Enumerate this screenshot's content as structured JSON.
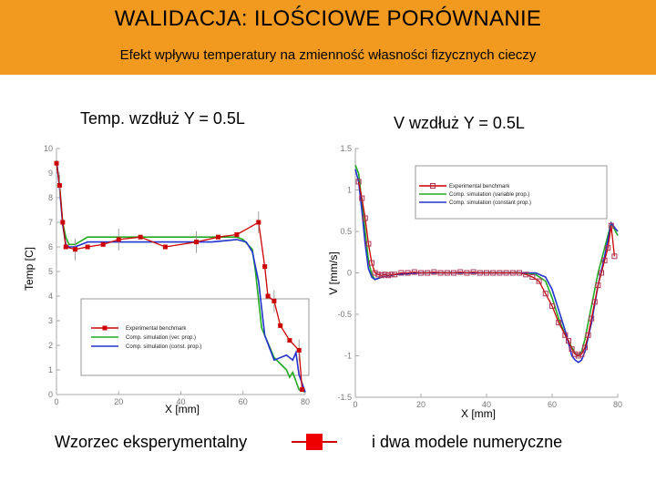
{
  "header": {
    "title": "WALIDACJA:  ILOŚCIOWE PORÓWNANIE",
    "subtitle": "Efekt wpływu temperatury na zmienność własności fizycznych cieczy"
  },
  "colors": {
    "header_bg": "#f29a1f",
    "experimental": "#cc0000",
    "variable": "#22aa22",
    "constant": "#2233cc"
  },
  "captions": {
    "left": "Wzorzec eksperymentalny",
    "right": "i dwa modele numeryczne"
  },
  "chart_data": [
    {
      "type": "line",
      "title": "Temp. wzdłuż Y = 0.5L",
      "xlabel": "X [mm]",
      "ylabel": "Temp [C]",
      "xlim": [
        0,
        80
      ],
      "ylim": [
        0,
        10
      ],
      "xticks": [
        "0",
        "20",
        "40",
        "60",
        "80"
      ],
      "yticks": [
        "0",
        "1",
        "2",
        "3",
        "4",
        "5",
        "6",
        "7",
        "8",
        "9",
        "10"
      ],
      "legend": [
        "Experimental benchmark",
        "Comp. simulation (ver. prop.)",
        "Comp. simulation (const. prop.)"
      ],
      "series": [
        {
          "name": "Experimental benchmark",
          "x": [
            0,
            1,
            2,
            3,
            6,
            10,
            15,
            20,
            27,
            35,
            45,
            52,
            58,
            65,
            67,
            68,
            70,
            72,
            75,
            78,
            79
          ],
          "y": [
            9.4,
            8.5,
            7.0,
            6.0,
            5.9,
            6.0,
            6.1,
            6.3,
            6.4,
            6.0,
            6.2,
            6.4,
            6.5,
            7.0,
            5.2,
            4.0,
            3.8,
            2.8,
            2.2,
            1.8,
            0.2
          ]
        },
        {
          "name": "Comp. simulation (ver. prop.)",
          "x": [
            0,
            1,
            2,
            3,
            4,
            6,
            10,
            15,
            20,
            30,
            40,
            50,
            58,
            60,
            63,
            64,
            66,
            70,
            74,
            75,
            76,
            78,
            80
          ],
          "y": [
            9.5,
            8.5,
            7.0,
            6.4,
            6.1,
            6.1,
            6.4,
            6.4,
            6.4,
            6.4,
            6.4,
            6.4,
            6.4,
            6.3,
            5.9,
            5.0,
            2.7,
            1.5,
            1.0,
            0.7,
            0.9,
            0.2,
            0.1
          ]
        },
        {
          "name": "Comp. simulation (const. prop.)",
          "x": [
            0,
            1,
            2,
            3,
            4,
            6,
            10,
            15,
            20,
            30,
            40,
            50,
            58,
            61,
            63,
            65,
            67,
            70,
            74,
            76,
            77,
            78,
            80
          ],
          "y": [
            9.5,
            8.4,
            6.9,
            6.1,
            6.0,
            6.0,
            6.2,
            6.2,
            6.2,
            6.2,
            6.2,
            6.2,
            6.3,
            6.2,
            5.8,
            4.6,
            2.4,
            1.4,
            1.6,
            1.4,
            1.7,
            0.8,
            0.1
          ]
        }
      ]
    },
    {
      "type": "line",
      "title": "V wzdłuż Y = 0.5L",
      "xlabel": "X [mm]",
      "ylabel": "V [mm/s]",
      "xlim": [
        0,
        80
      ],
      "ylim": [
        -1.5,
        1.5
      ],
      "xticks": [
        "0",
        "20",
        "40",
        "60",
        "80"
      ],
      "yticks": [
        "-1.5",
        "-1",
        "-0.5",
        "0",
        "0.5",
        "1",
        "1.5"
      ],
      "legend": [
        "Experimental benchmark",
        "Comp. simulation (variable prop.)",
        "Comp. simulation (constant prop.)"
      ],
      "series": [
        {
          "name": "Experimental benchmark",
          "x": [
            1,
            2,
            3,
            4,
            5,
            6,
            7,
            8,
            9,
            10,
            11,
            12,
            14,
            16,
            18,
            20,
            22,
            24,
            26,
            28,
            30,
            32,
            34,
            36,
            38,
            40,
            42,
            44,
            46,
            48,
            50,
            52,
            54,
            56,
            58,
            60,
            62,
            64,
            65,
            66,
            67,
            68,
            69,
            70,
            71,
            72,
            73,
            74,
            75,
            76,
            77,
            78,
            79
          ],
          "y": [
            1.1,
            0.9,
            0.66,
            0.35,
            0.12,
            0.0,
            -0.02,
            -0.03,
            -0.02,
            -0.03,
            -0.02,
            -0.02,
            0.0,
            0.0,
            0.01,
            0.0,
            0.0,
            0.01,
            0.0,
            0.0,
            0.0,
            0.01,
            0.0,
            0.01,
            0.0,
            0.0,
            0.0,
            0.0,
            0.0,
            0.0,
            0.0,
            -0.02,
            -0.05,
            -0.1,
            -0.25,
            -0.4,
            -0.6,
            -0.75,
            -0.82,
            -0.92,
            -0.98,
            -1.0,
            -0.98,
            -0.9,
            -0.75,
            -0.55,
            -0.35,
            -0.15,
            0.0,
            0.15,
            0.3,
            0.57,
            0.2
          ]
        },
        {
          "name": "Comp. simulation (variable prop.)",
          "x": [
            0,
            1,
            2,
            3,
            4,
            5,
            6,
            8,
            12,
            20,
            30,
            40,
            50,
            55,
            58,
            60,
            62,
            64,
            66,
            67,
            68,
            69,
            70,
            72,
            74,
            76,
            78,
            80
          ],
          "y": [
            1.3,
            1.2,
            0.85,
            0.5,
            0.15,
            -0.02,
            -0.08,
            -0.05,
            -0.02,
            0.0,
            0.0,
            0.0,
            0.0,
            -0.02,
            -0.1,
            -0.3,
            -0.55,
            -0.75,
            -0.9,
            -0.97,
            -1.0,
            -0.95,
            -0.8,
            -0.4,
            0.0,
            0.3,
            0.6,
            0.45
          ]
        },
        {
          "name": "Comp. simulation (constant prop.)",
          "x": [
            0,
            1,
            2,
            3,
            4,
            5,
            6,
            8,
            12,
            20,
            30,
            40,
            50,
            55,
            58,
            60,
            62,
            64,
            65,
            66,
            67,
            68,
            69,
            70,
            72,
            74,
            76,
            78,
            80
          ],
          "y": [
            1.25,
            1.1,
            0.75,
            0.35,
            0.05,
            -0.05,
            -0.08,
            -0.05,
            -0.02,
            0.0,
            0.0,
            0.0,
            0.0,
            0.0,
            -0.05,
            -0.2,
            -0.45,
            -0.7,
            -0.85,
            -1.0,
            -1.05,
            -1.08,
            -1.05,
            -0.95,
            -0.6,
            -0.15,
            0.2,
            0.6,
            0.5
          ]
        }
      ]
    }
  ]
}
